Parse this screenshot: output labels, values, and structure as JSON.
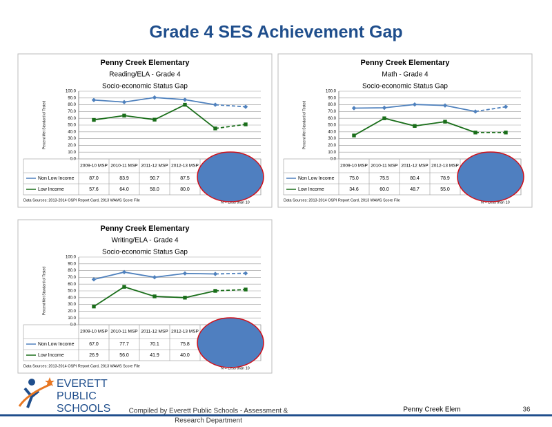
{
  "title": "Grade 4 SES Achievement Gap",
  "footer": {
    "logo_lines": [
      "EVERETT",
      "PUBLIC",
      "SCHOOLS"
    ],
    "compiled_lines": [
      "Compiled  by Everett Public  Schools - Assessment &",
      "Research Department"
    ],
    "school": "Penny Creek Elem",
    "page": "36"
  },
  "chart_data": [
    {
      "type": "line",
      "title_lines": [
        "Penny Creek Elementary",
        "Reading/ELA - Grade 4",
        "Socio-economic Status Gap"
      ],
      "y_label": "Percent Met Standard of Tested",
      "categories": [
        "2009-10 MSP",
        "2010-11 MSP",
        "2011-12 MSP",
        "2012-13 MSP",
        null,
        null
      ],
      "dashed_from": 4,
      "series": [
        {
          "name": "Non Low Income",
          "color": "#4f81bd",
          "marker": "diamond",
          "values": [
            87.0,
            83.9,
            90.7,
            87.5,
            80,
            77
          ],
          "value_labels": [
            "87.0",
            "83.9",
            "90.7",
            "87.5",
            null,
            null
          ]
        },
        {
          "name": "Low Income",
          "color": "#1a6e1a",
          "marker": "square",
          "values": [
            57.6,
            64.0,
            58.0,
            80.0,
            45,
            51
          ],
          "value_labels": [
            "57.6",
            "64.0",
            "58.0",
            "80.0",
            null,
            null
          ]
        }
      ],
      "ylim": [
        0,
        100
      ],
      "yticks": [
        {
          "value": 0,
          "label": "0.0"
        },
        {
          "value": 10,
          "label": "10.0"
        },
        {
          "value": 20,
          "label": "20.0"
        },
        {
          "value": 30,
          "label": "30.0"
        },
        {
          "value": 40,
          "label": "40.0"
        },
        {
          "value": 50,
          "label": "50.0"
        },
        {
          "value": 60,
          "label": "60.0"
        },
        {
          "value": 70,
          "label": "70.0"
        },
        {
          "value": 80,
          "label": "80.0"
        },
        {
          "value": 90,
          "label": "90.0"
        },
        {
          "value": 100,
          "label": "100.0"
        }
      ],
      "grid": true,
      "source": "Data Sources: 2013-2014 OSPI Report Card, 2013 WAMS Score File",
      "note": "N = Less than 10"
    },
    {
      "type": "line",
      "title_lines": [
        "Penny Creek Elementary",
        "Math - Grade 4",
        "Socio-economic Status Gap"
      ],
      "y_label": "Percent Met Standard of Tested",
      "categories": [
        "2009-10 MSP",
        "2010-11 MSP",
        "2011-12 MSP",
        "2012-13 MSP",
        null,
        null
      ],
      "dashed_from": 4,
      "series": [
        {
          "name": "Non Low Income",
          "color": "#4f81bd",
          "marker": "diamond",
          "values": [
            75.0,
            75.5,
            80.4,
            78.9,
            70,
            77
          ],
          "value_labels": [
            "75.0",
            "75.5",
            "80.4",
            "78.9",
            null,
            null
          ]
        },
        {
          "name": "Low Income",
          "color": "#1a6e1a",
          "marker": "square",
          "values": [
            34.6,
            60.0,
            48.7,
            55.0,
            39,
            39
          ],
          "value_labels": [
            "34.6",
            "60.0",
            "48.7",
            "55.0",
            null,
            null
          ]
        }
      ],
      "ylim": [
        0,
        100
      ],
      "yticks": [
        {
          "value": 0,
          "label": "0.0"
        },
        {
          "value": 10,
          "label": "10.0"
        },
        {
          "value": 20,
          "label": "20.0"
        },
        {
          "value": 30,
          "label": "30.0"
        },
        {
          "value": 40,
          "label": "40.0"
        },
        {
          "value": 50,
          "label": "50.0"
        },
        {
          "value": 60,
          "label": "60.0"
        },
        {
          "value": 70,
          "label": "70.0"
        },
        {
          "value": 80,
          "label": "80.0"
        },
        {
          "value": 90,
          "label": "90.0"
        },
        {
          "value": 100,
          "label": "100.0"
        }
      ],
      "grid": true,
      "source": "Data Sources: 2013-2014 OSPI Report Card, 2013 WAMS Score File",
      "note": "N = Less than 10"
    },
    {
      "type": "line",
      "title_lines": [
        "Penny Creek Elementary",
        "Writing/ELA - Grade 4",
        "Socio-economic Status Gap"
      ],
      "y_label": "Percent Met Standard of Tested",
      "categories": [
        "2009-10 MSP",
        "2010-11 MSP",
        "2011-12 MSP",
        "2012-13 MSP",
        null,
        null
      ],
      "dashed_from": 4,
      "series": [
        {
          "name": "Non Low Income",
          "color": "#4f81bd",
          "marker": "diamond",
          "values": [
            67.0,
            77.7,
            70.1,
            75.8,
            75,
            76
          ],
          "value_labels": [
            "67.0",
            "77.7",
            "70.1",
            "75.8",
            null,
            null
          ]
        },
        {
          "name": "Low Income",
          "color": "#1a6e1a",
          "marker": "square",
          "values": [
            26.9,
            56.0,
            41.9,
            40.0,
            50,
            52
          ],
          "value_labels": [
            "26.9",
            "56.0",
            "41.9",
            "40.0",
            null,
            null
          ]
        }
      ],
      "ylim": [
        0,
        100
      ],
      "yticks": [
        {
          "value": 0,
          "label": "0.0"
        },
        {
          "value": 10,
          "label": "10.0"
        },
        {
          "value": 20,
          "label": "20.0"
        },
        {
          "value": 30,
          "label": "30.0"
        },
        {
          "value": 40,
          "label": "40.0"
        },
        {
          "value": 50,
          "label": "50.0"
        },
        {
          "value": 60,
          "label": "60.0"
        },
        {
          "value": 70,
          "label": "70.0"
        },
        {
          "value": 80,
          "label": "80.0"
        },
        {
          "value": 90,
          "label": "90.0"
        },
        {
          "value": 100,
          "label": "100.0"
        }
      ],
      "grid": true,
      "source": "Data Sources: 2013-2014 OSPI Report Card, 2013 WAMS Score File",
      "note": "N = Less than 10"
    }
  ]
}
